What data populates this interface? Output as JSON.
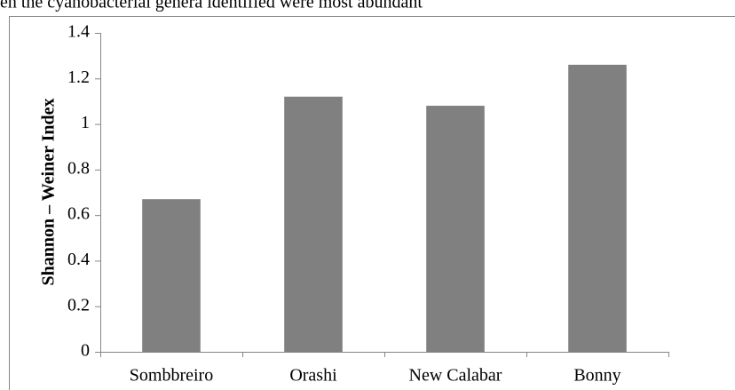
{
  "chart_data": {
    "type": "bar",
    "caption": "en the cyanobacterial genera identified were most abundant",
    "ylabel": "Shannon – Weiner Index",
    "categories": [
      "Sombbreiro",
      "Orashi",
      "New Calabar",
      "Bonny"
    ],
    "values": [
      0.67,
      1.12,
      1.08,
      1.26
    ],
    "color": "#808080",
    "ylim": [
      0,
      1.4
    ],
    "yticks": [
      0,
      0.2,
      0.4,
      0.6,
      0.8,
      1,
      1.2,
      1.4
    ],
    "grid": false
  }
}
